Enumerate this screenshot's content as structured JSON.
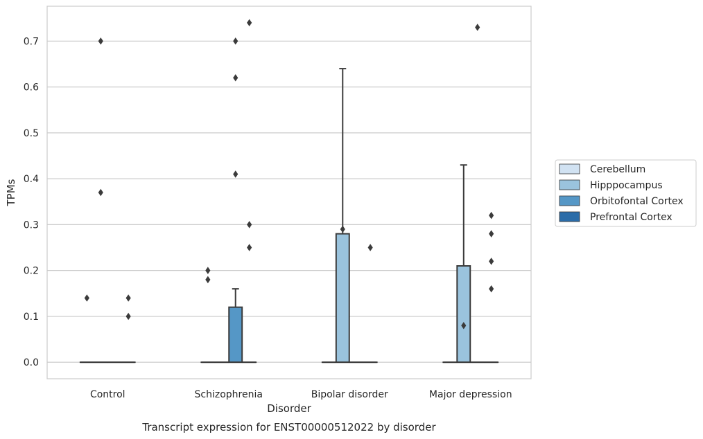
{
  "chart_data": {
    "type": "box",
    "title": "Transcript expression for ENST00000512022 by disorder",
    "xlabel": "Disorder",
    "ylabel": "TPMs",
    "ylim": [
      -0.036,
      0.776
    ],
    "yticks": [
      "0.0",
      "0.1",
      "0.2",
      "0.3",
      "0.4",
      "0.5",
      "0.6",
      "0.7"
    ],
    "categories": [
      "Control",
      "Schizophrenia",
      "Bipolar disorder",
      "Major depression"
    ],
    "grid": "horizontal",
    "legend_position": "right",
    "series": [
      {
        "name": "Cerebellum",
        "color": "#d1e2f2",
        "boxes": [
          {
            "q1": 0,
            "median": 0,
            "q3": 0,
            "whisker_low": 0,
            "whisker_high": 0,
            "outliers": [
              0.14
            ]
          },
          {
            "q1": 0,
            "median": 0,
            "q3": 0,
            "whisker_low": 0,
            "whisker_high": 0,
            "outliers": [
              0.18,
              0.2
            ]
          },
          {
            "q1": 0,
            "median": 0,
            "q3": 0,
            "whisker_low": 0,
            "whisker_high": 0,
            "outliers": []
          },
          {
            "q1": 0,
            "median": 0,
            "q3": 0,
            "whisker_low": 0,
            "whisker_high": 0,
            "outliers": []
          }
        ]
      },
      {
        "name": "Hipppocampus",
        "color": "#9ac3dd",
        "boxes": [
          {
            "q1": 0,
            "median": 0,
            "q3": 0,
            "whisker_low": 0,
            "whisker_high": 0,
            "outliers": [
              0.7,
              0.37
            ]
          },
          {
            "q1": 0,
            "median": 0,
            "q3": 0,
            "whisker_low": 0,
            "whisker_high": 0,
            "outliers": []
          },
          {
            "q1": 0,
            "median": 0,
            "q3": 0.28,
            "whisker_low": 0,
            "whisker_high": 0.64,
            "outliers": [
              0.29
            ]
          },
          {
            "q1": 0,
            "median": 0,
            "q3": 0.21,
            "whisker_low": 0,
            "whisker_high": 0.43,
            "outliers": [
              0.08
            ]
          }
        ]
      },
      {
        "name": "Orbitofontal Cortex",
        "color": "#5597c6",
        "boxes": [
          {
            "q1": 0,
            "median": 0,
            "q3": 0,
            "whisker_low": 0,
            "whisker_high": 0,
            "outliers": []
          },
          {
            "q1": 0,
            "median": 0,
            "q3": 0.12,
            "whisker_low": 0,
            "whisker_high": 0.16,
            "outliers": [
              0.7,
              0.62,
              0.41
            ]
          },
          {
            "q1": 0,
            "median": 0,
            "q3": 0,
            "whisker_low": 0,
            "whisker_high": 0,
            "outliers": []
          },
          {
            "q1": 0,
            "median": 0,
            "q3": 0,
            "whisker_low": 0,
            "whisker_high": 0,
            "outliers": [
              0.73
            ]
          }
        ]
      },
      {
        "name": "Prefrontal Cortex",
        "color": "#2b6ca8",
        "boxes": [
          {
            "q1": 0,
            "median": 0,
            "q3": 0,
            "whisker_low": 0,
            "whisker_high": 0,
            "outliers": [
              0.14,
              0.1
            ]
          },
          {
            "q1": 0,
            "median": 0,
            "q3": 0,
            "whisker_low": 0,
            "whisker_high": 0,
            "outliers": [
              0.74,
              0.3,
              0.25
            ]
          },
          {
            "q1": 0,
            "median": 0,
            "q3": 0,
            "whisker_low": 0,
            "whisker_high": 0,
            "outliers": [
              0.25
            ]
          },
          {
            "q1": 0,
            "median": 0,
            "q3": 0,
            "whisker_low": 0,
            "whisker_high": 0,
            "outliers": [
              0.32,
              0.28,
              0.22,
              0.16
            ]
          }
        ]
      }
    ]
  }
}
